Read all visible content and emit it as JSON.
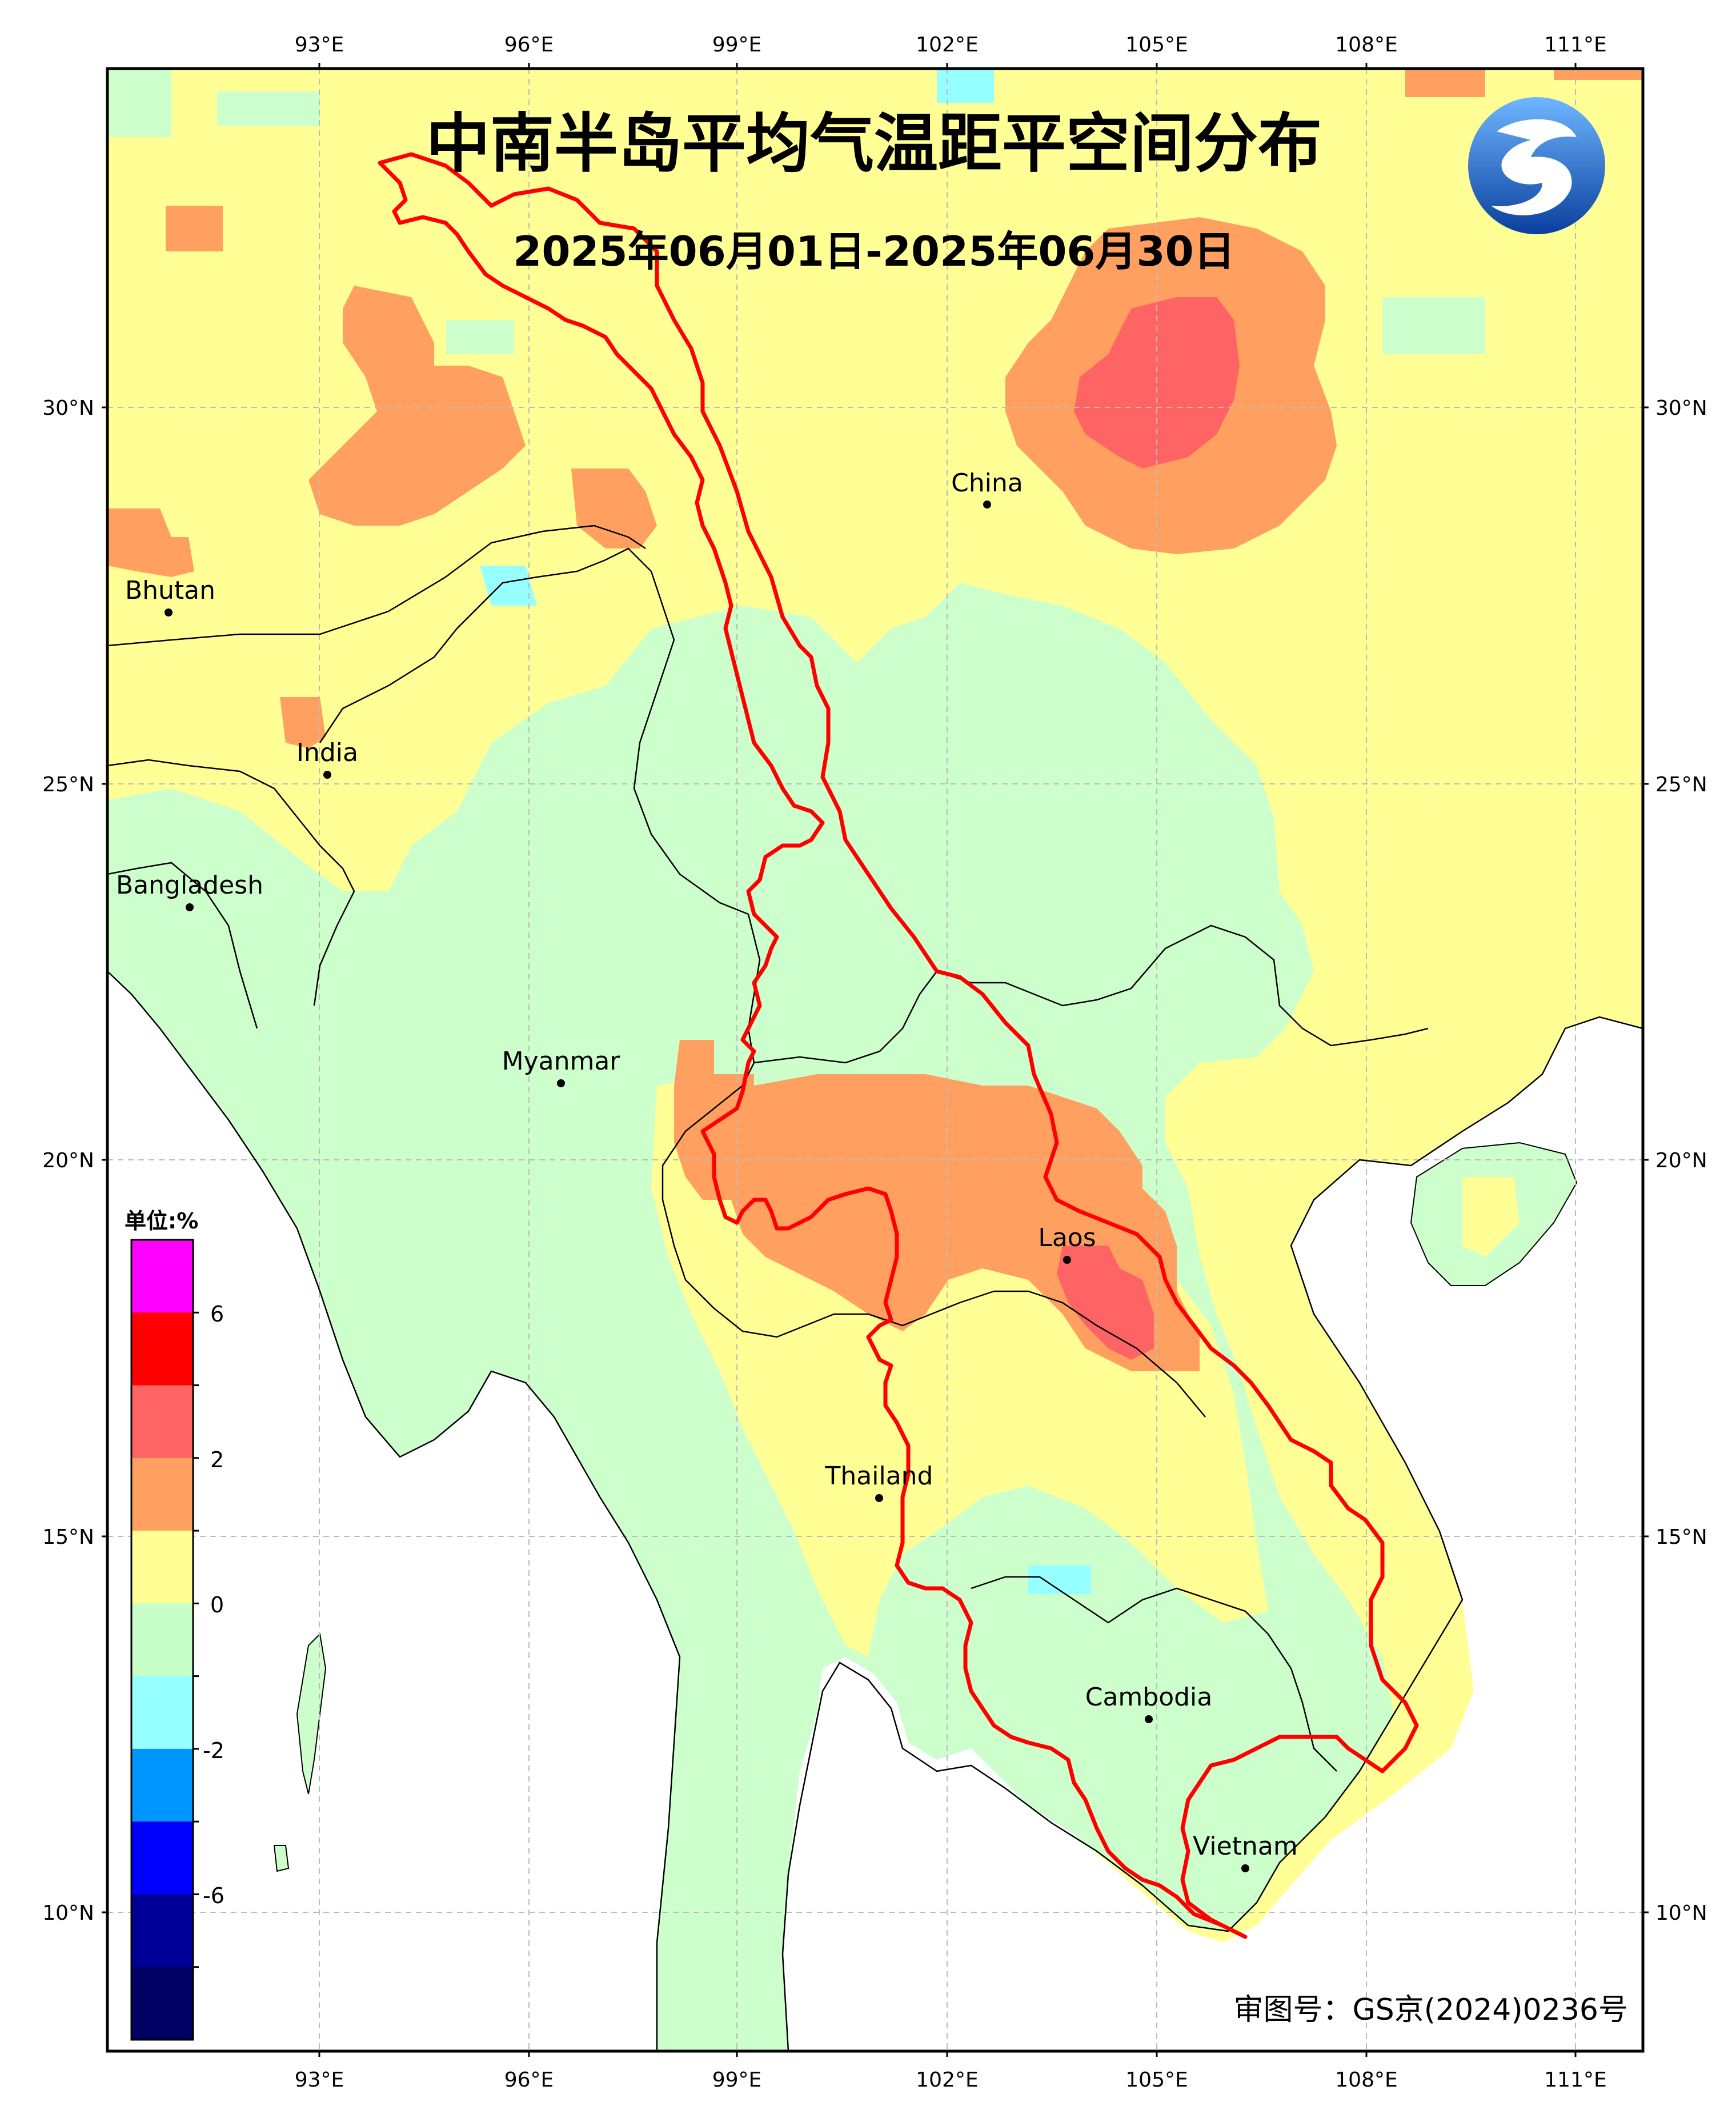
{
  "title": "中南半岛平均气温距平空间分布",
  "subtitle": "2025年06月01日-2025年06月30日",
  "approval_number": "审图号：GS京(2024)0236号",
  "longitude_ticks": [
    "93°E",
    "96°E",
    "99°E",
    "102°E",
    "105°E",
    "108°E",
    "111°E"
  ],
  "latitude_ticks": [
    "30°N",
    "25°N",
    "20°N",
    "15°N",
    "10°N"
  ],
  "places": [
    {
      "name": "China"
    },
    {
      "name": "Bhutan"
    },
    {
      "name": "India"
    },
    {
      "name": "Bangladesh"
    },
    {
      "name": "Myanmar"
    },
    {
      "name": "Laos"
    },
    {
      "name": "Thailand"
    },
    {
      "name": "Cambodia"
    },
    {
      "name": "Vietnam"
    }
  ],
  "legend": {
    "unit": "单位:%",
    "labels": [
      "6",
      "2",
      "0",
      "-2",
      "-6"
    ],
    "colors": [
      "#ff00ff",
      "#ff0000",
      "#ff6464",
      "#ffa060",
      "#ffff96",
      "#c8ffc8",
      "#96ffff",
      "#0096ff",
      "#0000ff",
      "#000096",
      "#000064"
    ]
  },
  "colors": {
    "near_zero_positive": "#ffff96",
    "near_zero_negative": "#ccffcc",
    "warm": "#ffa060",
    "hot": "#ff6464",
    "cool": "#96ffff",
    "boundary": "#ff0000"
  },
  "logo": {
    "icon": "dragon-logo-icon"
  }
}
